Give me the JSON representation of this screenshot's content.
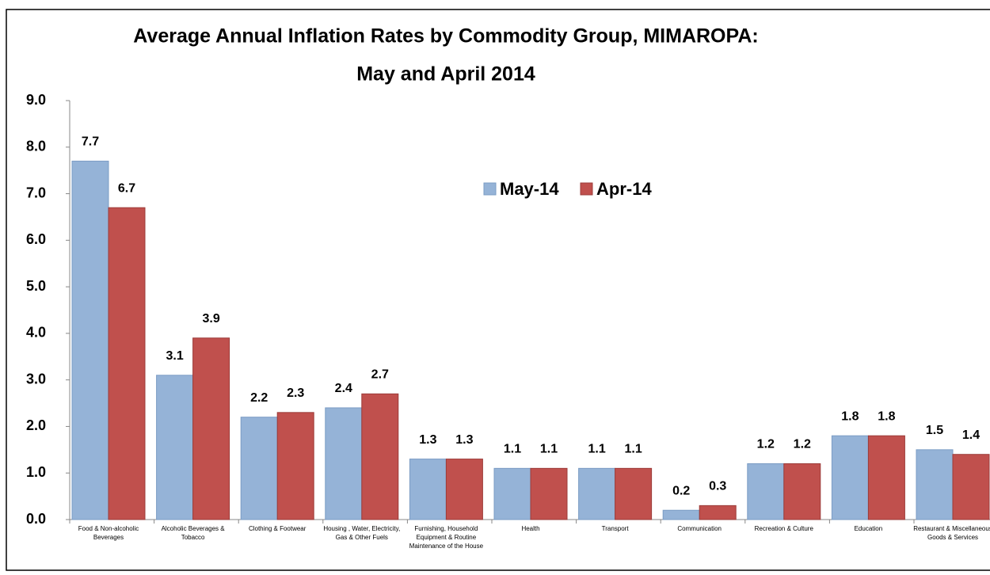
{
  "chart_data": {
    "type": "bar",
    "title": "Average Annual Inflation Rates by Commodity Group, MIMAROPA:",
    "subtitle": "May and April 2014",
    "categories": [
      "Food & Non-alcoholic Beverages",
      "Alcoholic Beverages & Tobacco",
      "Clothing & Footwear",
      "Housing , Water, Electricity, Gas & Other Fuels",
      "Furnishing, Household Equipment & Routine Maintenance of the House",
      "Health",
      "Transport",
      "Communication",
      "Recreation & Culture",
      "Education",
      "Restaurant & Miscellaneous Goods & Services"
    ],
    "series": [
      {
        "name": "May-14",
        "color": "#95b3d7",
        "values": [
          7.7,
          3.1,
          2.2,
          2.4,
          1.3,
          1.1,
          1.1,
          0.2,
          1.2,
          1.8,
          1.5
        ]
      },
      {
        "name": "Apr-14",
        "color": "#c0504d",
        "values": [
          6.7,
          3.9,
          2.3,
          2.7,
          1.3,
          1.1,
          1.1,
          0.3,
          1.2,
          1.8,
          1.4
        ]
      }
    ],
    "ylim": [
      0,
      9
    ],
    "yticks": [
      {
        "value": 0,
        "label": "0.0"
      },
      {
        "value": 1,
        "label": "1.0"
      },
      {
        "value": 2,
        "label": "2.0"
      },
      {
        "value": 3,
        "label": "3.0"
      },
      {
        "value": 4,
        "label": "4.0"
      },
      {
        "value": 5,
        "label": "5.0"
      },
      {
        "value": 6,
        "label": "6.0"
      },
      {
        "value": 7,
        "label": "7.0"
      },
      {
        "value": 8,
        "label": "8.0"
      },
      {
        "value": 9,
        "label": "9.0"
      }
    ]
  }
}
